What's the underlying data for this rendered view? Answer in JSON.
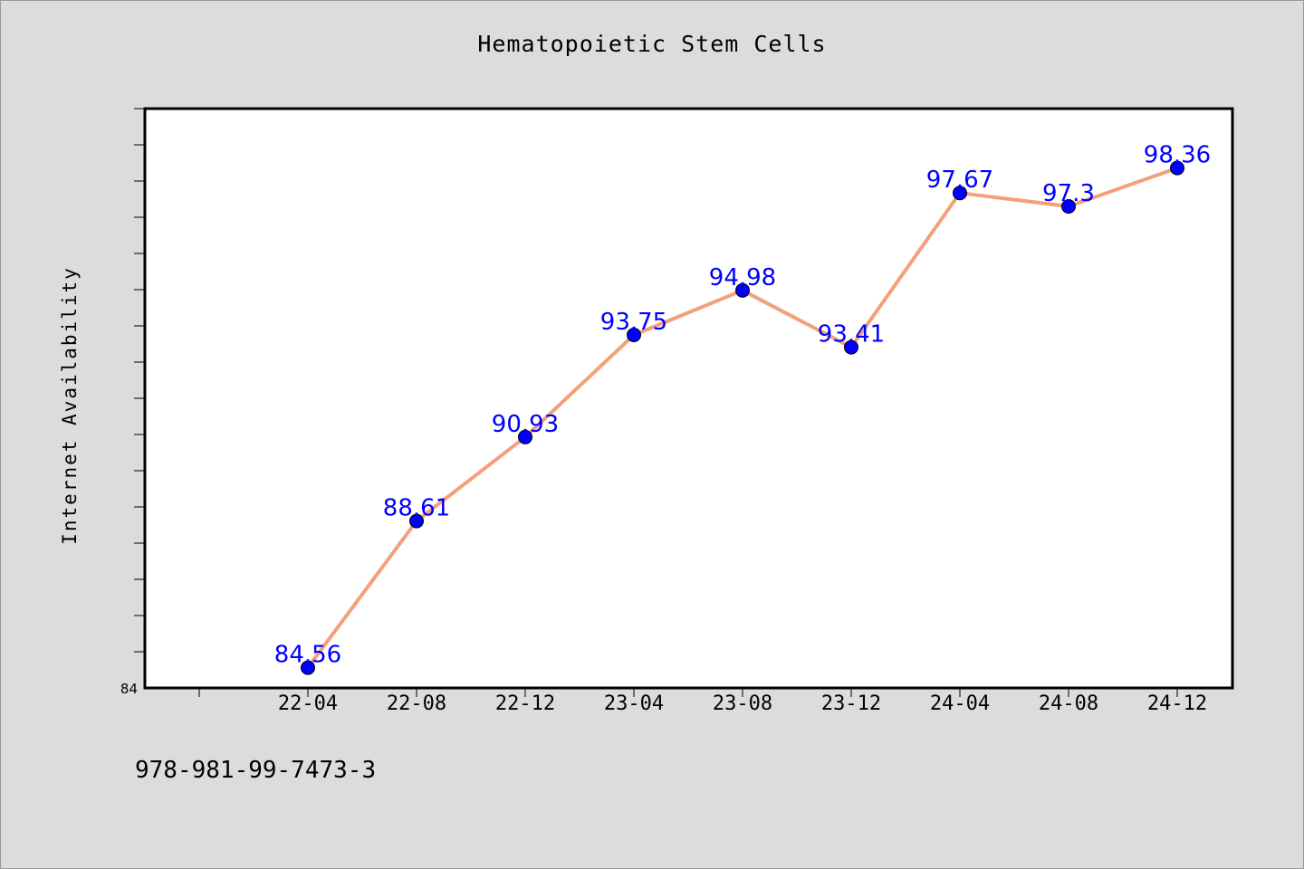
{
  "chart_data": {
    "type": "line",
    "title": "Hematopoietic Stem Cells",
    "ylabel": "Internet Availability",
    "xlabel": "",
    "categories": [
      "22-04",
      "22-08",
      "22-12",
      "23-04",
      "23-08",
      "23-12",
      "24-04",
      "24-08",
      "24-12"
    ],
    "series": [
      {
        "values": [
          84.56,
          88.61,
          90.93,
          93.75,
          94.98,
          93.41,
          97.67,
          97.3,
          98.36
        ]
      }
    ],
    "y_tick_labels": [
      "84"
    ],
    "ylim": [
      84,
      100
    ],
    "grid": false,
    "line_color": "#f4a07a",
    "marker_color": "#0000ff",
    "data_label_color": "#0000ff"
  },
  "footer": {
    "code": "978-981-99-7473-3"
  },
  "colors": {
    "background": "#dcdcdc",
    "plot_background": "#ffffff"
  }
}
